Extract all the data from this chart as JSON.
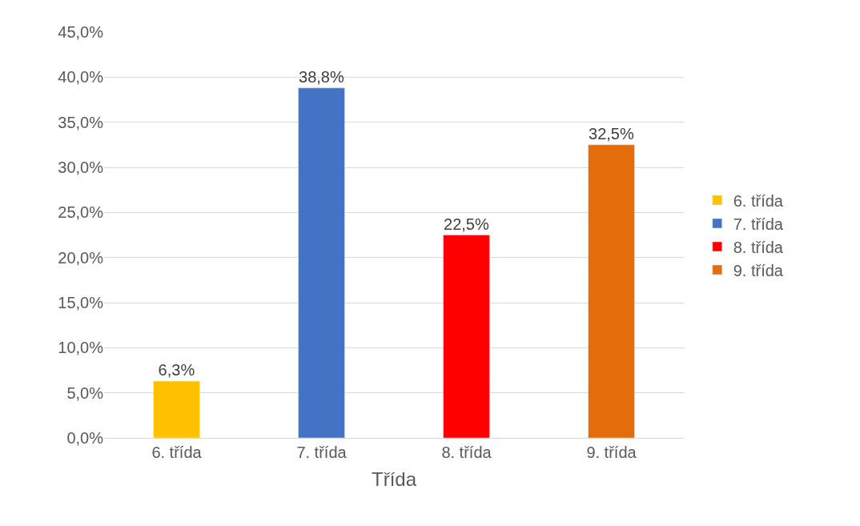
{
  "chart_data": {
    "type": "bar",
    "xlabel": "Třída",
    "categories": [
      "6. třída",
      "7. třída",
      "8. třída",
      "9. třída"
    ],
    "series": [
      {
        "name": "6. třída",
        "color": "#ffc000",
        "values": [
          6.3,
          null,
          null,
          null
        ],
        "value_labels": [
          "6,3%",
          null,
          null,
          null
        ]
      },
      {
        "name": "7. třída",
        "color": "#4472c4",
        "values": [
          null,
          38.8,
          null,
          null
        ],
        "value_labels": [
          null,
          "38,8%",
          null,
          null
        ]
      },
      {
        "name": "8. třída",
        "color": "#ff0000",
        "values": [
          null,
          null,
          22.5,
          null
        ],
        "value_labels": [
          null,
          null,
          "22,5%",
          null
        ]
      },
      {
        "name": "9. třída",
        "color": "#e46c0a",
        "values": [
          null,
          null,
          null,
          32.5
        ],
        "value_labels": [
          null,
          null,
          null,
          "32,5%"
        ]
      }
    ],
    "ylim": [
      0,
      45
    ],
    "yticks": [
      {
        "value": 0,
        "label": "0,0%"
      },
      {
        "value": 5,
        "label": "5,0%"
      },
      {
        "value": 10,
        "label": "10,0%"
      },
      {
        "value": 15,
        "label": "15,0%"
      },
      {
        "value": 20,
        "label": "20,0%"
      },
      {
        "value": 25,
        "label": "25,0%"
      },
      {
        "value": 30,
        "label": "30,0%"
      },
      {
        "value": 35,
        "label": "35,0%"
      },
      {
        "value": 40,
        "label": "40,0%"
      },
      {
        "value": 45,
        "label": "45,0%"
      }
    ],
    "grid": "y",
    "legend": "right"
  }
}
